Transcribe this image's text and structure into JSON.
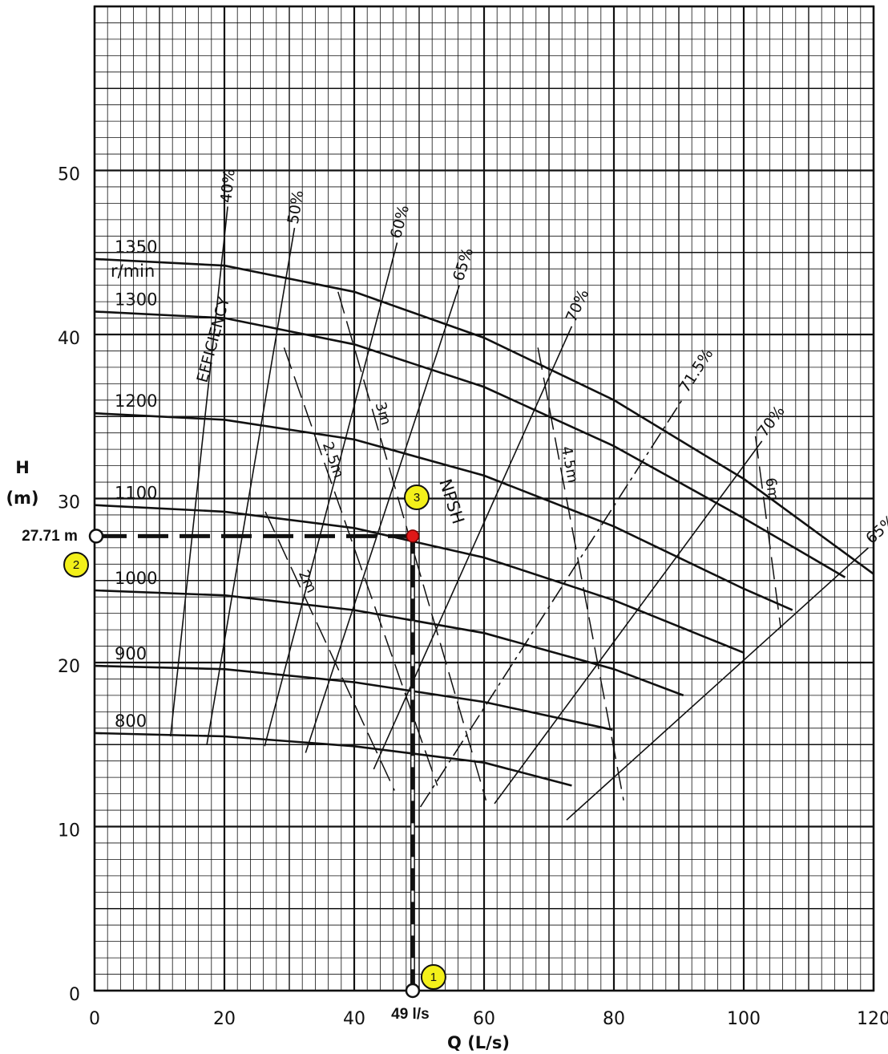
{
  "chart_data": {
    "type": "line",
    "title": "",
    "xlabel": "Q (L/s)",
    "ylabel_line1": "H",
    "ylabel_line2": "(m)",
    "xlim": [
      0,
      120
    ],
    "ylim": [
      0,
      60
    ],
    "xticks": [
      "0",
      "20",
      "40",
      "60",
      "80",
      "100",
      "120"
    ],
    "yticks": [
      "0",
      "10",
      "20",
      "30",
      "40",
      "50"
    ],
    "grid": true,
    "speed_unit": "r/min",
    "efficiency_label": "EFFICIENCY",
    "npsh_label": "NPSH",
    "speed_curves": [
      {
        "name": "1350",
        "x": [
          0,
          20,
          40,
          60,
          80,
          100,
          120
        ],
        "y": [
          44.6,
          44.2,
          42.6,
          39.8,
          36.0,
          31.2,
          25.4
        ]
      },
      {
        "name": "1300",
        "x": [
          0,
          20,
          40,
          60,
          80,
          100,
          115.6
        ],
        "y": [
          41.4,
          41.0,
          39.4,
          36.8,
          33.2,
          28.8,
          25.2
        ]
      },
      {
        "name": "1200",
        "x": [
          0,
          20,
          40,
          60,
          80,
          100,
          107.5
        ],
        "y": [
          35.2,
          34.8,
          33.6,
          31.4,
          28.3,
          24.5,
          23.2
        ]
      },
      {
        "name": "1100",
        "x": [
          0,
          20,
          40,
          60,
          80,
          100
        ],
        "y": [
          29.6,
          29.2,
          28.2,
          26.4,
          23.8,
          20.6
        ]
      },
      {
        "name": "1000",
        "x": [
          0,
          20,
          40,
          60,
          80,
          90.7
        ],
        "y": [
          24.4,
          24.1,
          23.2,
          21.8,
          19.6,
          18.0
        ]
      },
      {
        "name": "900",
        "x": [
          0,
          20,
          40,
          60,
          79.8
        ],
        "y": [
          19.8,
          19.6,
          18.8,
          17.6,
          15.9
        ]
      },
      {
        "name": "800",
        "x": [
          0,
          20,
          40,
          60,
          73.5
        ],
        "y": [
          15.7,
          15.5,
          14.9,
          13.9,
          12.5
        ]
      }
    ],
    "efficiency_curves": [
      {
        "name": "40%",
        "x": [
          11.7,
          20.5
        ],
        "y": [
          15.5,
          47.8
        ]
      },
      {
        "name": "50%",
        "x": [
          17.3,
          30.8
        ],
        "y": [
          15.0,
          46.5
        ]
      },
      {
        "name": "60%",
        "x": [
          26.2,
          46.6
        ],
        "y": [
          14.9,
          45.6
        ]
      },
      {
        "name": "65%",
        "x": [
          32.5,
          56.2
        ],
        "y": [
          14.5,
          43.0
        ]
      },
      {
        "name": "70%",
        "x": [
          43.0,
          73.5
        ],
        "y": [
          13.5,
          40.5
        ]
      },
      {
        "name": "71.5%",
        "x": [
          50.2,
          90.8
        ],
        "y": [
          11.2,
          36.2
        ]
      },
      {
        "name": "70%",
        "x": [
          61.6,
          102.8
        ],
        "y": [
          11.4,
          33.5
        ]
      },
      {
        "name": "65%",
        "x": [
          72.7,
          119.2
        ],
        "y": [
          10.4,
          27.0
        ]
      }
    ],
    "npsh_curves": [
      {
        "name": "2m",
        "x": [
          26.3,
          46.2
        ],
        "y": [
          29.2,
          12.2
        ]
      },
      {
        "name": "2.5m",
        "x": [
          29.2,
          52.8
        ],
        "y": [
          39.2,
          12.5
        ]
      },
      {
        "name": "3m",
        "x": [
          37.5,
          60.3
        ],
        "y": [
          42.6,
          11.6
        ]
      },
      {
        "name": "4.5m",
        "x": [
          68.3,
          81.5
        ],
        "y": [
          39.2,
          11.6
        ]
      },
      {
        "name": "6m",
        "x": [
          101.8,
          105.7
        ],
        "y": [
          33.8,
          22.1
        ]
      }
    ],
    "annotations": {
      "flow_value": 49,
      "flow_label": "49 l/s",
      "head_value": 27.71,
      "head_label": "27.71 m",
      "markers": [
        "1",
        "2",
        "3"
      ]
    }
  }
}
